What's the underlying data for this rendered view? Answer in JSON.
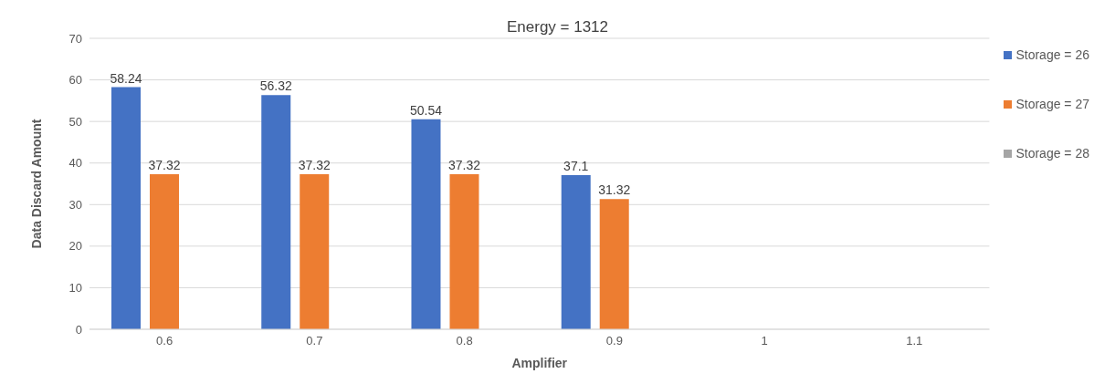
{
  "chart_data": {
    "type": "bar",
    "title": "Energy = 1312",
    "xlabel": "Amplifier",
    "ylabel": "Data Discard Amount",
    "categories": [
      "0.6",
      "0.7",
      "0.8",
      "0.9",
      "1",
      "1.1"
    ],
    "series": [
      {
        "name": "Storage = 26",
        "color": "#4472c4",
        "values": [
          58.24,
          56.32,
          50.54,
          37.1,
          null,
          null
        ]
      },
      {
        "name": "Storage = 27",
        "color": "#ed7d31",
        "values": [
          37.32,
          37.32,
          37.32,
          31.32,
          null,
          null
        ]
      },
      {
        "name": "Storage = 28",
        "color": "#a5a5a5",
        "values": [
          null,
          null,
          null,
          null,
          null,
          null
        ]
      }
    ],
    "ylim": [
      0,
      70
    ],
    "yticks": [
      0,
      10,
      20,
      30,
      40,
      50,
      60,
      70
    ],
    "grid": "y",
    "legend": "right",
    "data_labels": true
  }
}
